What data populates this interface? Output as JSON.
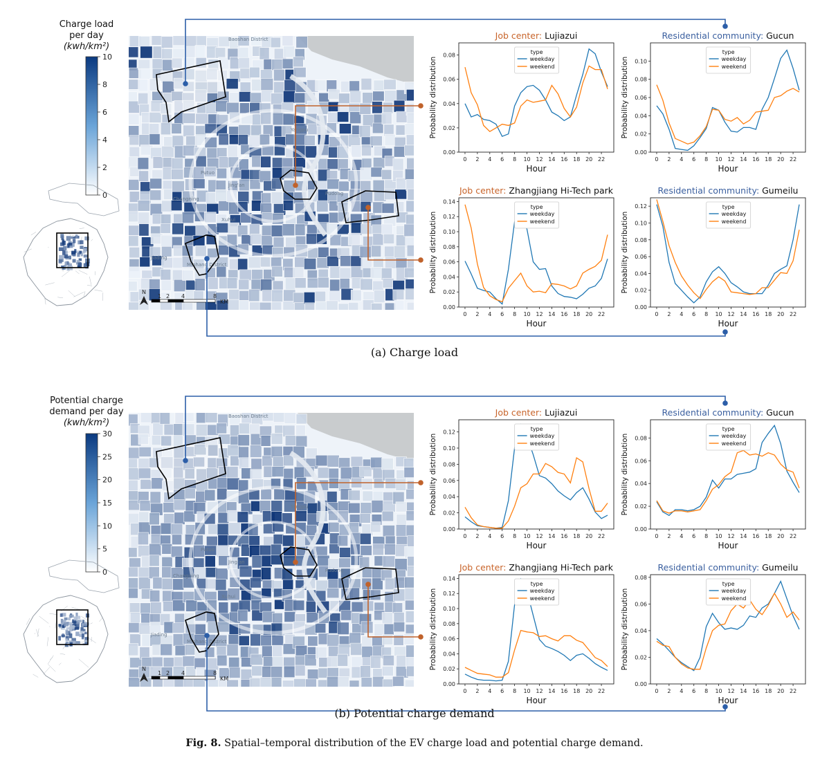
{
  "figure_caption": {
    "label": "Fig. 8.",
    "text": "Spatial–temporal distribution of the EV charge load and potential charge demand."
  },
  "legend_labels": {
    "weekday": "weekday",
    "weekend": "weekend",
    "type": "type"
  },
  "axis": {
    "xlabel": "Hour",
    "ylabel": "Probability distribution"
  },
  "colors": {
    "weekday": "#1f77b4",
    "weekend": "#ff7f0e",
    "job": "#c8642a",
    "residential": "#3a5f9f",
    "connector_job": "#c0622b",
    "connector_res": "#2c5ea8"
  },
  "map_labels": [
    "Baoshan District",
    "Jiading",
    "Minhang District",
    "Pudong",
    "Yangpu",
    "Putuo",
    "Jing'an",
    "Xuhui",
    "Changning"
  ],
  "scale_bar": {
    "ticks": [
      "1",
      "2",
      "4",
      "8"
    ],
    "unit": "KM",
    "north": "N"
  },
  "panels": [
    {
      "caption": "(a)  Charge load",
      "colorbar": {
        "title_line1": "Charge load",
        "title_line2": "per day",
        "unit": "(kwh/km²)",
        "ticks": [
          "0",
          "2",
          "4",
          "6",
          "8",
          "10"
        ],
        "max": 10
      },
      "chart_data": [
        {
          "type": "line",
          "category": "Job center:",
          "place": "Lujiazui",
          "x": [
            0,
            1,
            2,
            3,
            4,
            5,
            6,
            7,
            8,
            9,
            10,
            11,
            12,
            13,
            14,
            15,
            16,
            17,
            18,
            19,
            20,
            21,
            22,
            23
          ],
          "ylim": [
            0,
            0.09
          ],
          "yticks": [
            0,
            0.02,
            0.04,
            0.06,
            0.08
          ],
          "xticks": [
            0,
            2,
            4,
            6,
            8,
            10,
            12,
            14,
            16,
            18,
            20,
            22
          ],
          "series": [
            {
              "name": "weekday",
              "values": [
                0.04,
                0.029,
                0.031,
                0.027,
                0.026,
                0.023,
                0.013,
                0.015,
                0.038,
                0.049,
                0.054,
                0.055,
                0.051,
                0.043,
                0.033,
                0.03,
                0.026,
                0.029,
                0.047,
                0.064,
                0.085,
                0.081,
                0.066,
                0.054
              ]
            },
            {
              "name": "weekend",
              "values": [
                0.07,
                0.049,
                0.039,
                0.022,
                0.017,
                0.02,
                0.023,
                0.022,
                0.024,
                0.038,
                0.043,
                0.041,
                0.042,
                0.043,
                0.055,
                0.048,
                0.036,
                0.029,
                0.037,
                0.057,
                0.071,
                0.068,
                0.068,
                0.052
              ]
            }
          ]
        },
        {
          "type": "line",
          "category": "Residential community:",
          "place": "Gucun",
          "x": [
            0,
            1,
            2,
            3,
            4,
            5,
            6,
            7,
            8,
            9,
            10,
            11,
            12,
            13,
            14,
            15,
            16,
            17,
            18,
            19,
            20,
            21,
            22,
            23
          ],
          "ylim": [
            0,
            0.12
          ],
          "yticks": [
            0,
            0.02,
            0.04,
            0.06,
            0.08,
            0.1
          ],
          "xticks": [
            0,
            2,
            4,
            6,
            8,
            10,
            12,
            14,
            16,
            18,
            20,
            22
          ],
          "series": [
            {
              "name": "weekday",
              "values": [
                0.051,
                0.042,
                0.025,
                0.004,
                0.003,
                0.002,
                0.007,
                0.016,
                0.026,
                0.049,
                0.046,
                0.033,
                0.023,
                0.022,
                0.027,
                0.027,
                0.025,
                0.047,
                0.06,
                0.081,
                0.103,
                0.112,
                0.092,
                0.068
              ]
            },
            {
              "name": "weekend",
              "values": [
                0.074,
                0.057,
                0.032,
                0.015,
                0.012,
                0.009,
                0.011,
                0.018,
                0.028,
                0.047,
                0.046,
                0.036,
                0.034,
                0.038,
                0.031,
                0.035,
                0.044,
                0.045,
                0.046,
                0.06,
                0.062,
                0.067,
                0.07,
                0.066
              ]
            }
          ]
        },
        {
          "type": "line",
          "category": "Job center:",
          "place": "Zhangjiang Hi-Tech park",
          "x": [
            0,
            1,
            2,
            3,
            4,
            5,
            6,
            7,
            8,
            9,
            10,
            11,
            12,
            13,
            14,
            15,
            16,
            17,
            18,
            19,
            20,
            21,
            22,
            23
          ],
          "ylim": [
            0,
            0.145
          ],
          "yticks": [
            0,
            0.02,
            0.04,
            0.06,
            0.08,
            0.1,
            0.12,
            0.14
          ],
          "xticks": [
            0,
            2,
            4,
            6,
            8,
            10,
            12,
            14,
            16,
            18,
            20,
            22
          ],
          "series": [
            {
              "name": "weekday",
              "values": [
                0.061,
                0.044,
                0.025,
                0.022,
                0.02,
                0.011,
                0.004,
                0.05,
                0.113,
                0.131,
                0.103,
                0.06,
                0.05,
                0.051,
                0.028,
                0.018,
                0.014,
                0.013,
                0.011,
                0.017,
                0.025,
                0.028,
                0.038,
                0.064
              ]
            },
            {
              "name": "weekend",
              "values": [
                0.136,
                0.105,
                0.057,
                0.026,
                0.015,
                0.01,
                0.007,
                0.025,
                0.035,
                0.045,
                0.028,
                0.02,
                0.021,
                0.019,
                0.031,
                0.03,
                0.028,
                0.024,
                0.028,
                0.045,
                0.05,
                0.054,
                0.062,
                0.096
              ]
            }
          ]
        },
        {
          "type": "line",
          "category": "Residential community:",
          "place": "Gumeilu",
          "x": [
            0,
            1,
            2,
            3,
            4,
            5,
            6,
            7,
            8,
            9,
            10,
            11,
            12,
            13,
            14,
            15,
            16,
            17,
            18,
            19,
            20,
            21,
            22,
            23
          ],
          "ylim": [
            0,
            0.13
          ],
          "yticks": [
            0,
            0.02,
            0.04,
            0.06,
            0.08,
            0.1,
            0.12
          ],
          "xticks": [
            0,
            2,
            4,
            6,
            8,
            10,
            12,
            14,
            16,
            18,
            20,
            22
          ],
          "series": [
            {
              "name": "weekday",
              "values": [
                0.122,
                0.096,
                0.053,
                0.028,
                0.02,
                0.012,
                0.005,
                0.012,
                0.03,
                0.042,
                0.048,
                0.04,
                0.029,
                0.024,
                0.018,
                0.016,
                0.016,
                0.016,
                0.026,
                0.04,
                0.045,
                0.049,
                0.08,
                0.122
              ]
            },
            {
              "name": "weekend",
              "values": [
                0.128,
                0.102,
                0.073,
                0.053,
                0.037,
                0.026,
                0.017,
                0.01,
                0.021,
                0.03,
                0.036,
                0.031,
                0.018,
                0.017,
                0.016,
                0.015,
                0.016,
                0.023,
                0.023,
                0.032,
                0.041,
                0.04,
                0.055,
                0.092
              ]
            }
          ]
        }
      ]
    },
    {
      "caption": "(b)  Potential charge demand",
      "colorbar": {
        "title_line1": "Potential charge",
        "title_line2": "demand per day",
        "unit": "(kwh/km²)",
        "ticks": [
          "0",
          "5",
          "10",
          "15",
          "20",
          "25",
          "30"
        ],
        "max": 30
      },
      "chart_data": [
        {
          "type": "line",
          "category": "Job center:",
          "place": "Lujiazui",
          "x": [
            0,
            1,
            2,
            3,
            4,
            5,
            6,
            7,
            8,
            9,
            10,
            11,
            12,
            13,
            14,
            15,
            16,
            17,
            18,
            19,
            20,
            21,
            22,
            23
          ],
          "ylim": [
            0,
            0.135
          ],
          "yticks": [
            0,
            0.02,
            0.04,
            0.06,
            0.08,
            0.1,
            0.12
          ],
          "xticks": [
            0,
            2,
            4,
            6,
            8,
            10,
            12,
            14,
            16,
            18,
            20,
            22
          ],
          "series": [
            {
              "name": "weekday",
              "values": [
                0.015,
                0.009,
                0.004,
                0.003,
                0.002,
                0.001,
                0.002,
                0.035,
                0.1,
                0.129,
                0.114,
                0.092,
                0.066,
                0.063,
                0.056,
                0.047,
                0.041,
                0.036,
                0.045,
                0.051,
                0.037,
                0.021,
                0.013,
                0.017
              ]
            },
            {
              "name": "weekend",
              "values": [
                0.027,
                0.014,
                0.005,
                0.003,
                0.002,
                0.001,
                0.001,
                0.01,
                0.028,
                0.051,
                0.056,
                0.068,
                0.068,
                0.081,
                0.077,
                0.07,
                0.068,
                0.057,
                0.088,
                0.083,
                0.05,
                0.022,
                0.022,
                0.032
              ]
            }
          ]
        },
        {
          "type": "line",
          "category": "Residential community:",
          "place": "Gucun",
          "x": [
            0,
            1,
            2,
            3,
            4,
            5,
            6,
            7,
            8,
            9,
            10,
            11,
            12,
            13,
            14,
            15,
            16,
            17,
            18,
            19,
            20,
            21,
            22,
            23
          ],
          "ylim": [
            0,
            0.096
          ],
          "yticks": [
            0,
            0.02,
            0.04,
            0.06,
            0.08
          ],
          "xticks": [
            0,
            2,
            4,
            6,
            8,
            10,
            12,
            14,
            16,
            18,
            20,
            22
          ],
          "series": [
            {
              "name": "weekday",
              "values": [
                0.024,
                0.015,
                0.012,
                0.017,
                0.017,
                0.016,
                0.017,
                0.02,
                0.028,
                0.043,
                0.036,
                0.044,
                0.044,
                0.048,
                0.049,
                0.05,
                0.053,
                0.076,
                0.084,
                0.091,
                0.075,
                0.051,
                0.041,
                0.032
              ]
            },
            {
              "name": "weekend",
              "values": [
                0.025,
                0.016,
                0.014,
                0.016,
                0.016,
                0.015,
                0.016,
                0.017,
                0.025,
                0.035,
                0.039,
                0.046,
                0.05,
                0.067,
                0.069,
                0.065,
                0.066,
                0.064,
                0.067,
                0.065,
                0.057,
                0.052,
                0.05,
                0.036
              ]
            }
          ]
        },
        {
          "type": "line",
          "category": "Job center:",
          "place": "Zhangjiang Hi-Tech park",
          "x": [
            0,
            1,
            2,
            3,
            4,
            5,
            6,
            7,
            8,
            9,
            10,
            11,
            12,
            13,
            14,
            15,
            16,
            17,
            18,
            19,
            20,
            21,
            22,
            23
          ],
          "ylim": [
            0,
            0.145
          ],
          "yticks": [
            0,
            0.02,
            0.04,
            0.06,
            0.08,
            0.1,
            0.12,
            0.14
          ],
          "xticks": [
            0,
            2,
            4,
            6,
            8,
            10,
            12,
            14,
            16,
            18,
            20,
            22
          ],
          "series": [
            {
              "name": "weekday",
              "values": [
                0.013,
                0.009,
                0.006,
                0.005,
                0.005,
                0.004,
                0.005,
                0.03,
                0.105,
                0.139,
                0.123,
                0.091,
                0.059,
                0.05,
                0.047,
                0.043,
                0.038,
                0.031,
                0.038,
                0.04,
                0.034,
                0.027,
                0.022,
                0.018
              ]
            },
            {
              "name": "weekend",
              "values": [
                0.022,
                0.018,
                0.014,
                0.013,
                0.012,
                0.009,
                0.009,
                0.015,
                0.045,
                0.071,
                0.069,
                0.068,
                0.063,
                0.064,
                0.06,
                0.057,
                0.064,
                0.064,
                0.058,
                0.055,
                0.045,
                0.035,
                0.031,
                0.023
              ]
            }
          ]
        },
        {
          "type": "line",
          "category": "Residential community:",
          "place": "Gumeilu",
          "x": [
            0,
            1,
            2,
            3,
            4,
            5,
            6,
            7,
            8,
            9,
            10,
            11,
            12,
            13,
            14,
            15,
            16,
            17,
            18,
            19,
            20,
            21,
            22,
            23
          ],
          "ylim": [
            0,
            0.082
          ],
          "yticks": [
            0,
            0.02,
            0.04,
            0.06,
            0.08
          ],
          "xticks": [
            0,
            2,
            4,
            6,
            8,
            10,
            12,
            14,
            16,
            18,
            20,
            22
          ],
          "series": [
            {
              "name": "weekday",
              "values": [
                0.034,
                0.03,
                0.025,
                0.02,
                0.016,
                0.013,
                0.01,
                0.02,
                0.043,
                0.053,
                0.046,
                0.041,
                0.042,
                0.041,
                0.044,
                0.051,
                0.05,
                0.057,
                0.06,
                0.068,
                0.077,
                0.064,
                0.051,
                0.041
              ]
            },
            {
              "name": "weekend",
              "values": [
                0.032,
                0.029,
                0.028,
                0.02,
                0.015,
                0.012,
                0.011,
                0.011,
                0.027,
                0.04,
                0.044,
                0.045,
                0.055,
                0.06,
                0.057,
                0.063,
                0.056,
                0.052,
                0.059,
                0.068,
                0.06,
                0.05,
                0.054,
                0.048
              ]
            }
          ]
        }
      ]
    }
  ]
}
